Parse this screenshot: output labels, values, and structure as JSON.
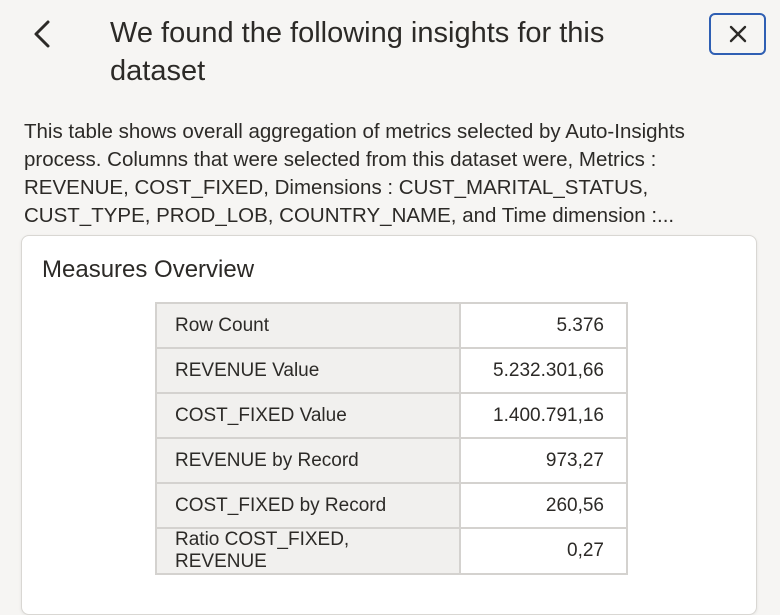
{
  "header": {
    "title": "We found the following insights for this dataset",
    "back_icon": "chevron-left-icon",
    "close_icon": "close-icon"
  },
  "description": "This table shows overall aggregation of metrics selected by Auto-Insights process. Columns that were selected from this dataset were, Metrics : REVENUE, COST_FIXED, Dimensions : CUST_MARITAL_STATUS, CUST_TYPE, PROD_LOB, COUNTRY_NAME, and Time dimension :...",
  "card": {
    "title": "Measures Overview",
    "rows": [
      {
        "label": "Row Count",
        "value": "5.376"
      },
      {
        "label": "REVENUE Value",
        "value": "5.232.301,66"
      },
      {
        "label": "COST_FIXED Value",
        "value": "1.400.791,16"
      },
      {
        "label": "REVENUE by Record",
        "value": "973,27"
      },
      {
        "label": "COST_FIXED by Record",
        "value": "260,56"
      },
      {
        "label": "Ratio COST_FIXED, REVENUE",
        "value": "0,27"
      }
    ]
  },
  "colors": {
    "background": "#f6f5f3",
    "focus_ring": "#2f5fb3",
    "text": "#2c2a27",
    "table_label_bg": "#f1f0ee",
    "table_border": "#d4d2cf"
  }
}
